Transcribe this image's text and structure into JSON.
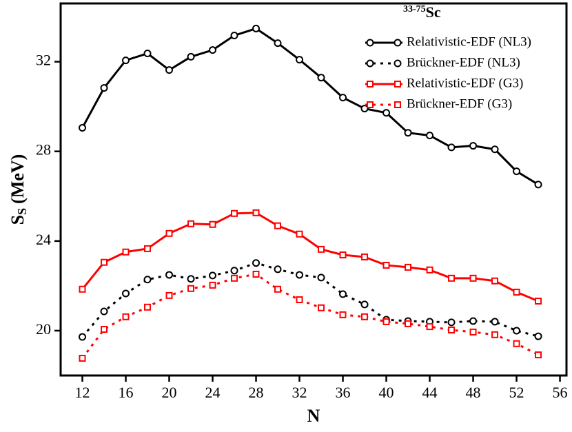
{
  "chart_data": {
    "type": "line",
    "xlabel": "N",
    "ylabel": {
      "main": "S",
      "subscript": "S",
      "unit": "(MeV)"
    },
    "legend_title": {
      "superscript": "33-75",
      "text": "Sc"
    },
    "legend": "upper right",
    "x": [
      12,
      14,
      16,
      18,
      20,
      22,
      24,
      26,
      28,
      30,
      32,
      34,
      36,
      38,
      40,
      42,
      44,
      46,
      48,
      50,
      52,
      54
    ],
    "xlim": [
      10,
      56.6
    ],
    "xticks": [
      12,
      16,
      20,
      24,
      28,
      32,
      36,
      40,
      44,
      48,
      52,
      56
    ],
    "ylim": [
      18,
      34.6
    ],
    "yticks": [
      20,
      24,
      28,
      32
    ],
    "series": [
      {
        "name": "Relativistic-EDF (NL3)",
        "color": "#000000",
        "dash": false,
        "marker": "circle",
        "values": [
          29.05,
          30.83,
          32.06,
          32.37,
          31.63,
          32.22,
          32.52,
          33.17,
          33.48,
          32.83,
          32.09,
          31.29,
          30.4,
          29.91,
          29.72,
          28.83,
          28.71,
          28.18,
          28.25,
          28.09,
          27.11,
          26.52
        ]
      },
      {
        "name": "Brückner-EDF (NL3)",
        "color": "#000000",
        "dash": true,
        "marker": "circle",
        "values": [
          19.72,
          20.86,
          21.66,
          22.28,
          22.49,
          22.31,
          22.46,
          22.68,
          23.02,
          22.74,
          22.49,
          22.37,
          21.63,
          21.17,
          20.49,
          20.43,
          20.4,
          20.37,
          20.43,
          20.4,
          20.0,
          19.75
        ]
      },
      {
        "name": "Relativistic-EDF (G3)",
        "color": "#ff0000",
        "dash": false,
        "marker": "square",
        "values": [
          21.85,
          23.05,
          23.51,
          23.66,
          24.34,
          24.77,
          24.74,
          25.23,
          25.26,
          24.68,
          24.31,
          23.63,
          23.38,
          23.29,
          22.92,
          22.83,
          22.71,
          22.34,
          22.34,
          22.22,
          21.72,
          21.32
        ]
      },
      {
        "name": "Brückner-EDF (G3)",
        "color": "#ff0000",
        "dash": true,
        "marker": "square",
        "values": [
          18.77,
          20.06,
          20.62,
          21.05,
          21.57,
          21.88,
          22.03,
          22.34,
          22.52,
          21.85,
          21.38,
          21.02,
          20.71,
          20.62,
          20.4,
          20.31,
          20.18,
          20.03,
          19.94,
          19.82,
          19.42,
          18.92
        ]
      }
    ]
  }
}
